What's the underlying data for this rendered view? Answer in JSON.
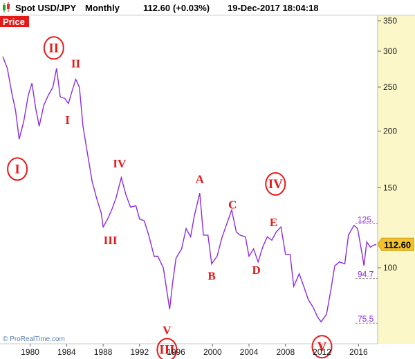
{
  "header": {
    "symbol": "Spot USD/JPY",
    "period": "Monthly",
    "last_value": "112.60",
    "change": "(+0.03%)",
    "datetime": "19-Dec-2017 18:04:18"
  },
  "panel_label": "Price",
  "copyright": "© ProRealTime.com",
  "colors": {
    "series": "#8a2be2",
    "waves": "#e61919",
    "last_badge": "#f2c12e",
    "axis_panel": "#fbf7c8",
    "price_label_bg": "#e61919"
  },
  "chart_data": {
    "type": "line",
    "y_scale": "log",
    "ylim": [
      68,
      360
    ],
    "xlim": [
      1977.0,
      2017.95
    ],
    "x_ticks": [
      1980,
      1984,
      1988,
      1992,
      1996,
      2000,
      2004,
      2008,
      2012,
      2016
    ],
    "y_ticks": [
      350,
      300,
      250,
      200,
      150,
      100
    ],
    "last_price": "112.60",
    "series": [
      {
        "points": [
          [
            1977.0,
            292
          ],
          [
            1977.5,
            275
          ],
          [
            1978.0,
            242
          ],
          [
            1978.4,
            222
          ],
          [
            1978.8,
            192
          ],
          [
            1979.3,
            210
          ],
          [
            1979.8,
            240
          ],
          [
            1980.2,
            255
          ],
          [
            1980.6,
            225
          ],
          [
            1981.0,
            205
          ],
          [
            1981.5,
            228
          ],
          [
            1982.0,
            240
          ],
          [
            1982.5,
            250
          ],
          [
            1982.9,
            275
          ],
          [
            1983.3,
            238
          ],
          [
            1983.8,
            236
          ],
          [
            1984.2,
            230
          ],
          [
            1984.6,
            245
          ],
          [
            1985.0,
            260
          ],
          [
            1985.4,
            250
          ],
          [
            1985.8,
            205
          ],
          [
            1986.3,
            178
          ],
          [
            1986.8,
            155
          ],
          [
            1987.3,
            142
          ],
          [
            1987.8,
            132
          ],
          [
            1988.0,
            123
          ],
          [
            1988.5,
            128
          ],
          [
            1989.0,
            135
          ],
          [
            1989.4,
            142
          ],
          [
            1990.0,
            158
          ],
          [
            1990.5,
            145
          ],
          [
            1991.0,
            136
          ],
          [
            1991.6,
            137
          ],
          [
            1992.0,
            128
          ],
          [
            1992.5,
            127
          ],
          [
            1993.0,
            118
          ],
          [
            1993.6,
            106
          ],
          [
            1994.0,
            106
          ],
          [
            1994.6,
            100
          ],
          [
            1995.3,
            81
          ],
          [
            1995.6,
            92
          ],
          [
            1996.0,
            105
          ],
          [
            1996.6,
            110
          ],
          [
            1997.1,
            122
          ],
          [
            1997.6,
            117
          ],
          [
            1998.0,
            130
          ],
          [
            1998.6,
            146
          ],
          [
            1999.0,
            118
          ],
          [
            1999.5,
            118
          ],
          [
            1999.9,
            102
          ],
          [
            2000.5,
            106
          ],
          [
            2001.0,
            116
          ],
          [
            2001.5,
            124
          ],
          [
            2002.1,
            134
          ],
          [
            2002.6,
            120
          ],
          [
            2003.0,
            118
          ],
          [
            2003.6,
            117
          ],
          [
            2004.0,
            106
          ],
          [
            2004.5,
            110
          ],
          [
            2005.0,
            103
          ],
          [
            2005.5,
            111
          ],
          [
            2006.0,
            117
          ],
          [
            2006.5,
            115
          ],
          [
            2007.0,
            120
          ],
          [
            2007.5,
            123
          ],
          [
            2008.0,
            107
          ],
          [
            2008.5,
            107
          ],
          [
            2008.9,
            91
          ],
          [
            2009.5,
            97
          ],
          [
            2010.0,
            91
          ],
          [
            2010.5,
            85
          ],
          [
            2011.0,
            82
          ],
          [
            2011.5,
            78
          ],
          [
            2011.9,
            76
          ],
          [
            2012.5,
            79
          ],
          [
            2013.0,
            90
          ],
          [
            2013.4,
            101
          ],
          [
            2013.9,
            103
          ],
          [
            2014.5,
            102
          ],
          [
            2014.9,
            118
          ],
          [
            2015.5,
            124
          ],
          [
            2015.9,
            122
          ],
          [
            2016.4,
            107
          ],
          [
            2016.6,
            101
          ],
          [
            2016.9,
            114
          ],
          [
            2017.3,
            111
          ],
          [
            2017.6,
            112
          ],
          [
            2017.95,
            112.6
          ]
        ]
      }
    ],
    "levels": [
      {
        "value": 125,
        "label": "125."
      },
      {
        "value": 94.7,
        "label": "94.7"
      },
      {
        "value": 75.5,
        "label": "75.5"
      }
    ],
    "wave_labels": [
      {
        "text": "II",
        "x": 1982.6,
        "y": 305,
        "circled": true
      },
      {
        "text": "II",
        "x": 1985.0,
        "y": 282,
        "circled": false
      },
      {
        "text": "I",
        "x": 1984.1,
        "y": 212,
        "circled": false
      },
      {
        "text": "I",
        "x": 1978.6,
        "y": 165,
        "circled": true
      },
      {
        "text": "IV",
        "x": 1989.8,
        "y": 170,
        "circled": false
      },
      {
        "text": "III",
        "x": 1988.8,
        "y": 115,
        "circled": false
      },
      {
        "text": "A",
        "x": 1998.6,
        "y": 157,
        "circled": false
      },
      {
        "text": "C",
        "x": 2002.2,
        "y": 138,
        "circled": false
      },
      {
        "text": "IV",
        "x": 2006.9,
        "y": 153,
        "circled": true
      },
      {
        "text": "E",
        "x": 2006.7,
        "y": 126,
        "circled": false
      },
      {
        "text": "B",
        "x": 1999.9,
        "y": 96,
        "circled": false
      },
      {
        "text": "D",
        "x": 2004.8,
        "y": 99,
        "circled": false
      },
      {
        "text": "V",
        "x": 1995.0,
        "y": 73,
        "circled": false
      },
      {
        "text": "III",
        "x": 1995.0,
        "y": 66,
        "circled": true
      },
      {
        "text": "V",
        "x": 2012.0,
        "y": 67,
        "circled": true
      }
    ]
  }
}
